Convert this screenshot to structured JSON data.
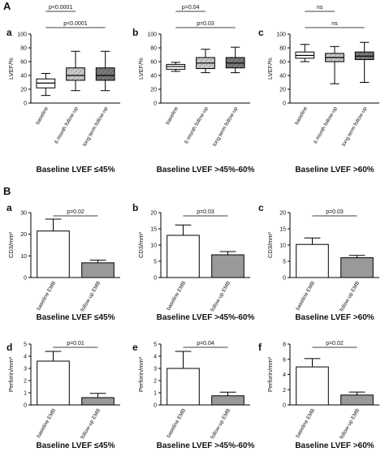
{
  "sections": [
    {
      "label": "A",
      "row": 0
    },
    {
      "label": "B",
      "row": 1
    }
  ],
  "chart_data": [
    {
      "id": "A-a",
      "section": "A",
      "panel_label": "a",
      "type": "box",
      "ylabel": "LVEF/%",
      "ylim": [
        0,
        100
      ],
      "yticks": [
        0,
        20,
        40,
        60,
        80,
        100
      ],
      "categories": [
        "baseline",
        "6 month follow-up",
        "long term follow-up"
      ],
      "boxes": [
        {
          "min": 11,
          "q1": 22,
          "median": 29,
          "q3": 35,
          "max": 43
        },
        {
          "min": 18,
          "q1": 33,
          "median": 40,
          "q3": 51,
          "max": 75
        },
        {
          "min": 18,
          "q1": 33,
          "median": 40,
          "q3": 51,
          "max": 75
        }
      ],
      "fills": [
        "#ffffff",
        "#bbbbbb",
        "#777777"
      ],
      "comparisons": [
        {
          "from": 0,
          "to": 1,
          "label": "p<0.0001"
        },
        {
          "from": 0,
          "to": 2,
          "label": "p<0.0001"
        }
      ],
      "caption": "Baseline LVEF ≤45%"
    },
    {
      "id": "A-b",
      "section": "A",
      "panel_label": "b",
      "type": "box",
      "ylabel": "LVEF/%",
      "ylim": [
        0,
        100
      ],
      "yticks": [
        0,
        20,
        40,
        60,
        80,
        100
      ],
      "categories": [
        "baseline",
        "6 month follow-up",
        "long term follow-up"
      ],
      "boxes": [
        {
          "min": 46,
          "q1": 49,
          "median": 53,
          "q3": 56,
          "max": 59
        },
        {
          "min": 44,
          "q1": 50,
          "median": 58,
          "q3": 66,
          "max": 78
        },
        {
          "min": 44,
          "q1": 51,
          "median": 58,
          "q3": 66,
          "max": 81
        }
      ],
      "fills": [
        "#ffffff",
        "#bbbbbb",
        "#777777"
      ],
      "comparisons": [
        {
          "from": 0,
          "to": 1,
          "label": "p=0.04"
        },
        {
          "from": 0,
          "to": 2,
          "label": "p=0.03"
        }
      ],
      "caption": "Baseline LVEF >45%-60%"
    },
    {
      "id": "A-c",
      "section": "A",
      "panel_label": "c",
      "type": "box",
      "ylabel": "LVEF/%",
      "ylim": [
        0,
        100
      ],
      "yticks": [
        0,
        20,
        40,
        60,
        80,
        100
      ],
      "categories": [
        "baseline",
        "6 month follow-up",
        "long term follow-up"
      ],
      "boxes": [
        {
          "min": 60,
          "q1": 65,
          "median": 69,
          "q3": 74,
          "max": 85
        },
        {
          "min": 28,
          "q1": 60,
          "median": 66,
          "q3": 72,
          "max": 82
        },
        {
          "min": 30,
          "q1": 63,
          "median": 68,
          "q3": 74,
          "max": 88
        }
      ],
      "fills": [
        "#ffffff",
        "#bbbbbb",
        "#777777"
      ],
      "comparisons": [
        {
          "from": 0,
          "to": 1,
          "label": "ns"
        },
        {
          "from": 0,
          "to": 2,
          "label": "ns"
        }
      ],
      "caption": "Baseline LVEF >60%"
    },
    {
      "id": "B-a",
      "section": "B",
      "panel_label": "a",
      "type": "bar",
      "ylabel": "CD3/mm²",
      "ylim": [
        0,
        30
      ],
      "yticks": [
        0,
        10,
        20,
        30
      ],
      "categories": [
        "baseline EMB",
        "follow-up EMB"
      ],
      "values": [
        21.5,
        6.8
      ],
      "errors": [
        5.5,
        1.2
      ],
      "fills": [
        "#ffffff",
        "#999999"
      ],
      "comparisons": [
        {
          "from": 0,
          "to": 1,
          "label": "p=0.02"
        }
      ],
      "caption": "Baseline LVEF ≤45%"
    },
    {
      "id": "B-b",
      "section": "B",
      "panel_label": "b",
      "type": "bar",
      "ylabel": "CD3/mm²",
      "ylim": [
        0,
        20
      ],
      "yticks": [
        0,
        5,
        10,
        15,
        20
      ],
      "categories": [
        "baseline EMB",
        "follow-up EMB"
      ],
      "values": [
        13,
        7
      ],
      "errors": [
        3.2,
        1.0
      ],
      "fills": [
        "#ffffff",
        "#999999"
      ],
      "comparisons": [
        {
          "from": 0,
          "to": 1,
          "label": "p=0.03"
        }
      ],
      "caption": "Baseline LVEF >45%-60%"
    },
    {
      "id": "B-c",
      "section": "B",
      "panel_label": "c",
      "type": "bar",
      "ylabel": "CD3/mm²",
      "ylim": [
        0,
        20
      ],
      "yticks": [
        0,
        5,
        10,
        15,
        20
      ],
      "categories": [
        "baseline EMB",
        "follow-up EMB"
      ],
      "values": [
        10.2,
        6.1
      ],
      "errors": [
        2.0,
        0.7
      ],
      "fills": [
        "#ffffff",
        "#999999"
      ],
      "comparisons": [
        {
          "from": 0,
          "to": 1,
          "label": "p=0.03"
        }
      ],
      "caption": "Baseline LVEF >60%"
    },
    {
      "id": "B-d",
      "section": "B",
      "panel_label": "d",
      "type": "bar",
      "ylabel": "Perforin/mm²",
      "ylim": [
        0,
        5
      ],
      "yticks": [
        0,
        1,
        2,
        3,
        4,
        5
      ],
      "categories": [
        "baseline EMB",
        "follow-up EMB"
      ],
      "values": [
        3.6,
        0.6
      ],
      "errors": [
        0.8,
        0.35
      ],
      "fills": [
        "#ffffff",
        "#999999"
      ],
      "comparisons": [
        {
          "from": 0,
          "to": 1,
          "label": "p=0.01"
        }
      ],
      "caption": "Baseline LVEF ≤45%"
    },
    {
      "id": "B-e",
      "section": "B",
      "panel_label": "e",
      "type": "bar",
      "ylabel": "Perforin/mm²",
      "ylim": [
        0,
        5
      ],
      "yticks": [
        0,
        1,
        2,
        3,
        4,
        5
      ],
      "categories": [
        "baseline EMB",
        "follow-up EMB"
      ],
      "values": [
        3.0,
        0.75
      ],
      "errors": [
        1.4,
        0.3
      ],
      "fills": [
        "#ffffff",
        "#999999"
      ],
      "comparisons": [
        {
          "from": 0,
          "to": 1,
          "label": "p=0.04"
        }
      ],
      "caption": "Baseline LVEF >45%-60%"
    },
    {
      "id": "B-f",
      "section": "B",
      "panel_label": "f",
      "type": "bar",
      "ylabel": "Perforin/mm²",
      "ylim": [
        0,
        8
      ],
      "yticks": [
        0,
        2,
        4,
        6,
        8
      ],
      "categories": [
        "baseline EMB",
        "follow-up EMB"
      ],
      "values": [
        5.0,
        1.3
      ],
      "errors": [
        1.1,
        0.4
      ],
      "fills": [
        "#ffffff",
        "#999999"
      ],
      "comparisons": [
        {
          "from": 0,
          "to": 1,
          "label": "p=0.02"
        }
      ],
      "caption": "Baseline LVEF >60%"
    }
  ]
}
